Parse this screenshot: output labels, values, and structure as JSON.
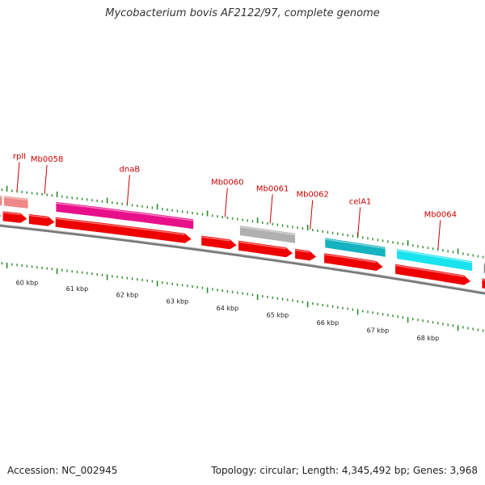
{
  "title": "Mycobacterium bovis AF2122/97, complete genome",
  "footer": {
    "accession": "Accession: NC_002945",
    "summary": "Topology: circular; Length: 4,345,492 bp; Genes: 3,968"
  },
  "colors": {
    "red": "#ee0000",
    "salmon": "#ee8888",
    "magenta": "#e8108a",
    "gray": "#b0b0b0",
    "darkgray": "#777777",
    "teal": "#15b3c0",
    "cyan": "#19e4ee",
    "tick": "#2a8a2a",
    "label": "#cc0000"
  },
  "gene_labels": [
    {
      "name": "rplI",
      "pos": 0.05
    },
    {
      "name": "Mb0058",
      "pos": 0.105
    },
    {
      "name": "dnaB",
      "pos": 0.27
    },
    {
      "name": "Mb0060",
      "pos": 0.465
    },
    {
      "name": "Mb0061",
      "pos": 0.555
    },
    {
      "name": "Mb0062",
      "pos": 0.635
    },
    {
      "name": "celA1",
      "pos": 0.73
    },
    {
      "name": "Mb0064",
      "pos": 0.89
    }
  ],
  "upper_genes": [
    {
      "start": -0.02,
      "end": 0.02,
      "color": "salmon"
    },
    {
      "start": 0.024,
      "end": 0.072,
      "color": "salmon"
    },
    {
      "start": 0.128,
      "end": 0.402,
      "color": "magenta"
    },
    {
      "start": 0.495,
      "end": 0.605,
      "color": "gray"
    },
    {
      "start": 0.665,
      "end": 0.785,
      "color": "teal"
    },
    {
      "start": 0.808,
      "end": 0.958,
      "color": "cyan"
    },
    {
      "start": 0.982,
      "end": 1.05,
      "color": "darkgray"
    }
  ],
  "lower_genes": [
    {
      "start": -0.02,
      "end": 0.018,
      "color": "red"
    },
    {
      "start": 0.022,
      "end": 0.07,
      "color": "red"
    },
    {
      "start": 0.074,
      "end": 0.125,
      "color": "red"
    },
    {
      "start": 0.127,
      "end": 0.398,
      "color": "red"
    },
    {
      "start": 0.418,
      "end": 0.488,
      "color": "red"
    },
    {
      "start": 0.492,
      "end": 0.6,
      "color": "red"
    },
    {
      "start": 0.605,
      "end": 0.647,
      "color": "red"
    },
    {
      "start": 0.663,
      "end": 0.78,
      "color": "red"
    },
    {
      "start": 0.805,
      "end": 0.955,
      "color": "red"
    },
    {
      "start": 0.978,
      "end": 1.05,
      "color": "red"
    }
  ],
  "kbp_labels": [
    "60 kbp",
    "61 kbp",
    "62 kbp",
    "63 kbp",
    "64 kbp",
    "65 kbp",
    "66 kbp",
    "67 kbp",
    "68 kbp"
  ]
}
